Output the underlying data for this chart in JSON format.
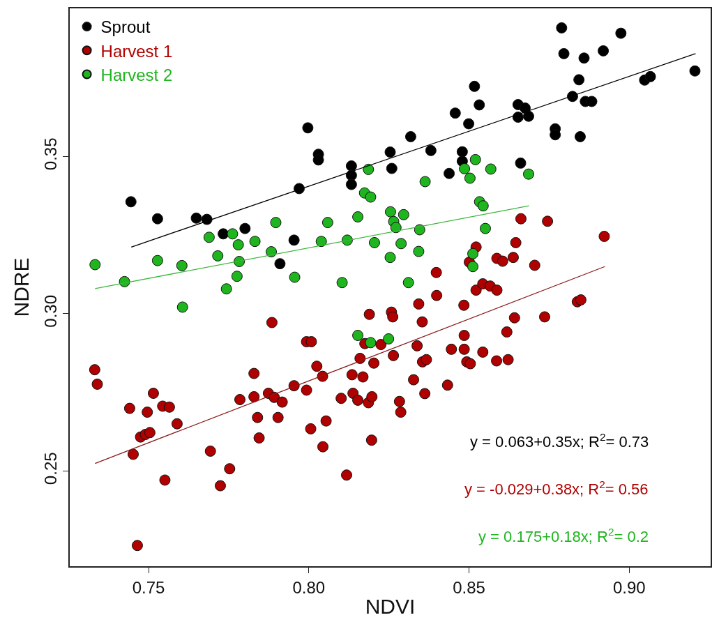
{
  "chart_data": {
    "type": "scatter",
    "xlabel": "NDVI",
    "ylabel": "NDRE",
    "xlim": [
      0.7254,
      0.9254
    ],
    "xticks": [
      {
        "value": 0.75,
        "label": "0.75"
      },
      {
        "value": 0.8,
        "label": "0.80"
      },
      {
        "value": 0.85,
        "label": "0.85"
      },
      {
        "value": 0.9,
        "label": "0.90"
      }
    ],
    "ylim": [
      0.2197,
      0.3971
    ],
    "yticks": [
      {
        "value": 0.25,
        "label": "0.25"
      },
      {
        "value": 0.3,
        "label": "0.30"
      },
      {
        "value": 0.35,
        "label": "0.35"
      }
    ],
    "legend": "top left",
    "marker": "circle",
    "series": [
      {
        "name": "Sprout",
        "color": "#000000",
        "x": [
          0.7445,
          0.7528,
          0.7649,
          0.7682,
          0.7733,
          0.7801,
          0.791,
          0.7954,
          0.797,
          0.7997,
          0.803,
          0.803,
          0.8133,
          0.8133,
          0.8133,
          0.8789,
          0.8974,
          0.8796,
          0.8859,
          0.8919,
          0.9205,
          0.9048,
          0.9066,
          0.8843,
          0.8823,
          0.8863,
          0.8883,
          0.8517,
          0.8532,
          0.8457,
          0.8499,
          0.8653,
          0.8675,
          0.8653,
          0.8686,
          0.8769,
          0.8769,
          0.8847,
          0.8318,
          0.8254,
          0.8381,
          0.8259,
          0.8438,
          0.8479,
          0.8479,
          0.8661
        ],
        "values": [
          0.3356,
          0.3302,
          0.3304,
          0.33,
          0.3254,
          0.3271,
          0.3159,
          0.3234,
          0.3398,
          0.3591,
          0.3507,
          0.3489,
          0.347,
          0.344,
          0.3411,
          0.3909,
          0.3892,
          0.3827,
          0.3813,
          0.3836,
          0.3772,
          0.3743,
          0.3754,
          0.3744,
          0.3691,
          0.3675,
          0.3675,
          0.3723,
          0.3664,
          0.3638,
          0.3604,
          0.3665,
          0.3654,
          0.3625,
          0.3628,
          0.3588,
          0.3569,
          0.3563,
          0.3563,
          0.3514,
          0.3519,
          0.3462,
          0.3446,
          0.3515,
          0.3485,
          0.3479
        ]
      },
      {
        "name": "Harvest 1",
        "color": "#b00000",
        "x": [
          0.7332,
          0.734,
          0.7441,
          0.7496,
          0.7515,
          0.7544,
          0.7565,
          0.7475,
          0.749,
          0.7504,
          0.7452,
          0.7589,
          0.7551,
          0.7465,
          0.7693,
          0.7724,
          0.7753,
          0.7785,
          0.7829,
          0.7829,
          0.784,
          0.7845,
          0.7885,
          0.7874,
          0.7892,
          0.7917,
          0.7904,
          0.7954,
          0.7993,
          0.8008,
          0.7993,
          0.8025,
          0.8043,
          0.8006,
          0.8054,
          0.8044,
          0.8118,
          0.8101,
          0.8135,
          0.816,
          0.8138,
          0.8153,
          0.8186,
          0.8197,
          0.8175,
          0.8225,
          0.8169,
          0.8203,
          0.8189,
          0.8258,
          0.8262,
          0.8264,
          0.8283,
          0.8287,
          0.8196,
          0.8343,
          0.8354,
          0.8338,
          0.8355,
          0.8367,
          0.8327,
          0.8362,
          0.8433,
          0.8445,
          0.8398,
          0.8399,
          0.8484,
          0.8485,
          0.8485,
          0.8493,
          0.8504,
          0.8543,
          0.8522,
          0.8543,
          0.8566,
          0.8587,
          0.8586,
          0.8622,
          0.8618,
          0.8642,
          0.8736,
          0.8838,
          0.8849,
          0.8662,
          0.8745,
          0.8922,
          0.8646,
          0.8638,
          0.8587,
          0.8605,
          0.8705,
          0.8522,
          0.8501
        ],
        "values": [
          0.2822,
          0.2776,
          0.2699,
          0.2687,
          0.2747,
          0.2706,
          0.2703,
          0.2608,
          0.2616,
          0.2622,
          0.2553,
          0.265,
          0.2471,
          0.2263,
          0.2563,
          0.2453,
          0.2507,
          0.2727,
          0.281,
          0.2736,
          0.267,
          0.2605,
          0.2972,
          0.2747,
          0.2734,
          0.2719,
          0.267,
          0.2771,
          0.2911,
          0.2911,
          0.2757,
          0.2833,
          0.2801,
          0.2634,
          0.2659,
          0.2577,
          0.2487,
          0.2731,
          0.2806,
          0.2858,
          0.2747,
          0.2725,
          0.2717,
          0.2736,
          0.2905,
          0.2902,
          0.2799,
          0.2843,
          0.2998,
          0.3005,
          0.299,
          0.2867,
          0.2721,
          0.2687,
          0.2598,
          0.3031,
          0.2974,
          0.2898,
          0.2847,
          0.2854,
          0.279,
          0.2746,
          0.2773,
          0.2887,
          0.3131,
          0.3058,
          0.3027,
          0.2931,
          0.2887,
          0.2847,
          0.2841,
          0.2878,
          0.3075,
          0.3095,
          0.3088,
          0.3075,
          0.285,
          0.2854,
          0.2942,
          0.2987,
          0.299,
          0.3038,
          0.3044,
          0.3302,
          0.3294,
          0.3246,
          0.3226,
          0.3179,
          0.3176,
          0.3167,
          0.3154,
          0.3212,
          0.3164
        ]
      },
      {
        "name": "Harvest 2",
        "color": "#1fb51f",
        "x": [
          0.7333,
          0.7425,
          0.7528,
          0.7604,
          0.7606,
          0.7689,
          0.7716,
          0.7743,
          0.7762,
          0.778,
          0.7783,
          0.7776,
          0.7832,
          0.7883,
          0.7897,
          0.7956,
          0.8039,
          0.8059,
          0.8104,
          0.812,
          0.8186,
          0.8174,
          0.8193,
          0.8153,
          0.8363,
          0.8255,
          0.8296,
          0.8265,
          0.8272,
          0.8346,
          0.8205,
          0.8288,
          0.8343,
          0.8254,
          0.8311,
          0.852,
          0.8486,
          0.8503,
          0.8568,
          0.8686,
          0.8533,
          0.8544,
          0.8551,
          0.8512,
          0.8512,
          0.8153,
          0.8193,
          0.8249
        ],
        "values": [
          0.3156,
          0.3102,
          0.3169,
          0.3153,
          0.3021,
          0.3243,
          0.3184,
          0.3079,
          0.3254,
          0.3219,
          0.3166,
          0.3119,
          0.323,
          0.3197,
          0.329,
          0.3116,
          0.323,
          0.329,
          0.3099,
          0.3234,
          0.3459,
          0.3384,
          0.3371,
          0.3308,
          0.342,
          0.3324,
          0.3315,
          0.3293,
          0.3274,
          0.3267,
          0.3226,
          0.3223,
          0.3198,
          0.3179,
          0.3099,
          0.349,
          0.3461,
          0.3431,
          0.346,
          0.3444,
          0.3356,
          0.3343,
          0.3271,
          0.3191,
          0.315,
          0.2931,
          0.2908,
          0.292
        ]
      },
      {
        "type": "line",
        "marker": "none",
        "color": "#000000",
        "x": [
          0.7446,
          0.9207
        ],
        "values": [
          0.3212,
          0.3827
        ]
      },
      {
        "type": "line",
        "marker": "none",
        "color": "#8b1a1a",
        "x": [
          0.7333,
          0.8924
        ],
        "values": [
          0.2524,
          0.315
        ]
      },
      {
        "type": "line",
        "marker": "none",
        "color": "#3cb83c",
        "x": [
          0.7333,
          0.8687
        ],
        "values": [
          0.308,
          0.3343
        ]
      }
    ],
    "annotations": [
      "y = 0.063+0.35x; R$^{2}$= 0.73",
      "y = -0.029+0.38x; R$^{2}$= 0.56",
      "y = 0.175+0.18x; R$^{2}$= 0.2"
    ]
  }
}
